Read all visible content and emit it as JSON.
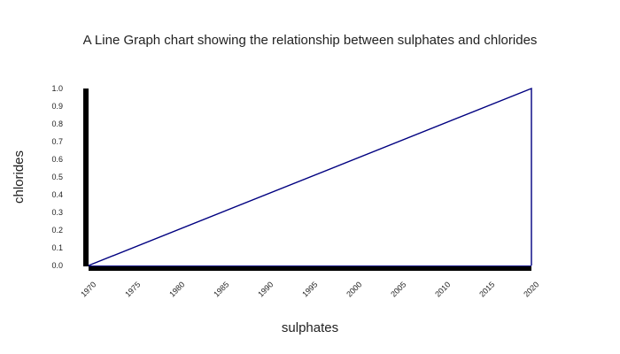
{
  "chart_data": {
    "type": "line",
    "title": "A Line Graph chart showing the relationship between sulphates and chlorides",
    "xlabel": "sulphates",
    "ylabel": "chlorides",
    "xlim": [
      1970,
      2020
    ],
    "ylim": [
      0.0,
      1.0
    ],
    "x_ticks": [
      "1970",
      "1975",
      "1980",
      "1985",
      "1990",
      "1995",
      "2000",
      "2005",
      "2010",
      "2015",
      "2020"
    ],
    "y_ticks": [
      "0.0",
      "0.1",
      "0.2",
      "0.3",
      "0.4",
      "0.5",
      "0.6",
      "0.7",
      "0.8",
      "0.9",
      "1.0"
    ],
    "grid": false,
    "series": [
      {
        "x": [
          1970,
          2020,
          2020
        ],
        "y": [
          0.0,
          1.0,
          0.0
        ],
        "color": "#000080"
      }
    ],
    "axis_color": "#000000"
  }
}
